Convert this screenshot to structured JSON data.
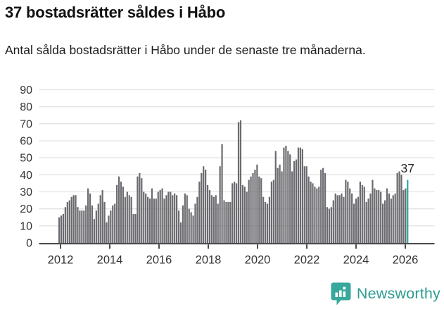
{
  "header": {
    "title": "37 bostadsrätter såldes i Håbo",
    "subtitle": "Antal sålda bostadsrätter i Håbo under de senaste tre månaderna."
  },
  "chart_data": {
    "type": "bar",
    "title": "37 bostadsrätter såldes i Håbo",
    "xlabel": "",
    "ylabel": "",
    "frequency": "monthly",
    "x_start": "2012-01",
    "x_end": "2026-02",
    "ylim": [
      0,
      90
    ],
    "yticks": [
      0,
      10,
      20,
      30,
      40,
      50,
      60,
      70,
      80,
      90
    ],
    "xticks": [
      2012,
      2014,
      2016,
      2018,
      2020,
      2022,
      2024,
      2026
    ],
    "grid": "horizontal",
    "legend": "none",
    "values": [
      15,
      16,
      17,
      21,
      24,
      25,
      27,
      28,
      28,
      21,
      19,
      19,
      19,
      22,
      32,
      29,
      22,
      14,
      19,
      23,
      28,
      31,
      24,
      12,
      16,
      19,
      22,
      23,
      34,
      39,
      36,
      33,
      27,
      30,
      28,
      27,
      17,
      17,
      39,
      41,
      38,
      30,
      29,
      27,
      26,
      32,
      26,
      26,
      30,
      31,
      32,
      26,
      28,
      30,
      30,
      28,
      29,
      28,
      19,
      12,
      22,
      29,
      28,
      20,
      18,
      16,
      23,
      27,
      36,
      41,
      45,
      43,
      34,
      31,
      28,
      27,
      28,
      23,
      45,
      58,
      25,
      24,
      24,
      24,
      35,
      36,
      35,
      71,
      72,
      34,
      33,
      30,
      37,
      39,
      41,
      43,
      46,
      39,
      38,
      27,
      24,
      23,
      27,
      36,
      37,
      54,
      44,
      46,
      42,
      56,
      57,
      54,
      52,
      42,
      48,
      49,
      56,
      56,
      55,
      45,
      45,
      39,
      36,
      35,
      33,
      32,
      33,
      43,
      44,
      41,
      21,
      20,
      21,
      25,
      29,
      28,
      28,
      29,
      27,
      37,
      36,
      32,
      29,
      23,
      26,
      27,
      36,
      34,
      33,
      24,
      26,
      29,
      37,
      32,
      31,
      31,
      30,
      23,
      25,
      32,
      29,
      26,
      28,
      29,
      41,
      42,
      40,
      31,
      32,
      37
    ],
    "highlight_last": true,
    "annotation": {
      "text": "37",
      "value": 37
    },
    "colors": {
      "bar": "#6a6a6f",
      "highlight": "#2aa6a0",
      "gridline": "#e3e3e3",
      "axis": "#4d4d4d",
      "tick_text": "#333333"
    }
  },
  "footer": {
    "brand": "Newsworthy",
    "logo_icon": "bar-chart-speech-bubble-icon",
    "brand_color": "#2E9C90"
  }
}
